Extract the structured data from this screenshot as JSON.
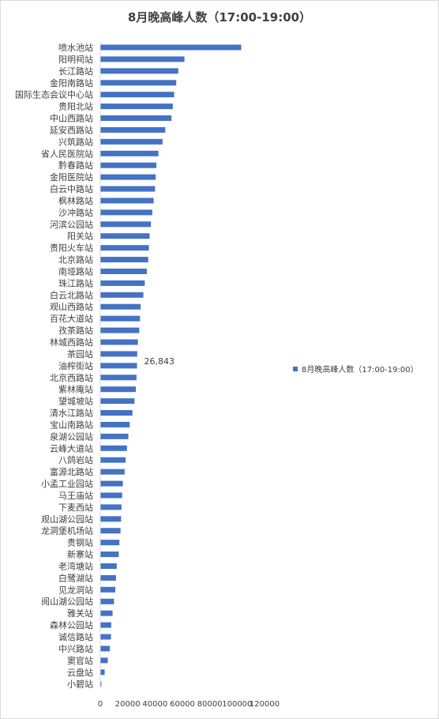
{
  "chart_data": {
    "type": "bar",
    "orientation": "horizontal",
    "title": "8月晚高峰人数（17:00-19:00）",
    "categories": [
      "喷水池站",
      "阳明祠站",
      "长江路站",
      "金阳南路站",
      "国际生态会议中心站",
      "贵阳北站",
      "中山西路站",
      "延安西路站",
      "兴筑路站",
      "省人民医院站",
      "黔春路站",
      "金阳医院站",
      "白云中路站",
      "枫林路站",
      "沙冲路站",
      "河滨公园站",
      "阳关站",
      "贵阳火车站",
      "北京路站",
      "南垭路站",
      "珠江路站",
      "白云北路站",
      "观山西路站",
      "百花大道站",
      "孜茶路站",
      "林城西路站",
      "茶园站",
      "油榨街站",
      "北京西路站",
      "紫林庵站",
      "望城坡站",
      "清水江路站",
      "宝山南路站",
      "泉湖公园站",
      "云峰大道站",
      "八鸽岩站",
      "富源北路站",
      "小孟工业园站",
      "马王庙站",
      "下麦西站",
      "观山湖公园站",
      "龙洞堡机场站",
      "贵钢站",
      "新寨站",
      "老湾塘站",
      "白鹭湖站",
      "见龙洞站",
      "阅山湖公园站",
      "雅关站",
      "森林公园站",
      "诚信路站",
      "中兴路站",
      "窦官站",
      "云盘站",
      "小碧站"
    ],
    "series": [
      {
        "name": "8月晚高峰人数（17:00-19:00）",
        "color": "#4472c4",
        "values": [
          103000,
          61500,
          57000,
          55500,
          54000,
          53000,
          52000,
          47500,
          45500,
          42500,
          41000,
          40500,
          40000,
          39000,
          38000,
          37000,
          36000,
          35500,
          35000,
          34000,
          32500,
          31500,
          29500,
          29000,
          28500,
          27500,
          27000,
          26843,
          26500,
          26000,
          25000,
          23500,
          21500,
          20500,
          19500,
          18500,
          17800,
          16500,
          16000,
          15500,
          15200,
          14800,
          14000,
          13500,
          12000,
          11500,
          11000,
          10000,
          9000,
          8000,
          7800,
          7000,
          5500,
          3200,
          800
        ]
      }
    ],
    "data_labels": [
      {
        "category": "油榨街站",
        "text": "26,843"
      }
    ],
    "x_axis": {
      "ticks": [
        0,
        20000,
        40000,
        60000,
        80000,
        100000,
        120000
      ],
      "tick_labels": [
        "0",
        "20000",
        "40000",
        "60000",
        "80000",
        "100000",
        "120000"
      ]
    },
    "xlim": [
      0,
      120000
    ],
    "grid": false,
    "legend": {
      "position": "right",
      "entries": [
        "8月晚高峰人数（17:00-19:00）"
      ]
    }
  }
}
